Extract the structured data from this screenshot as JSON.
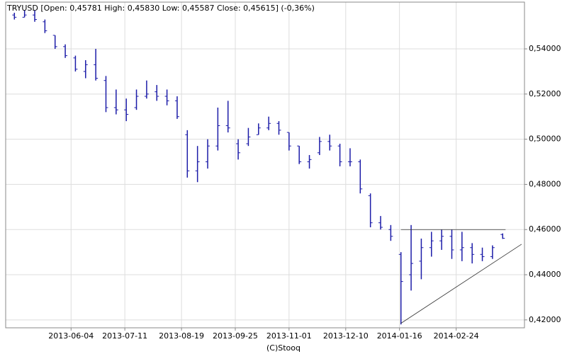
{
  "chart_data": {
    "type": "ohlc",
    "title": "TRYUSD [Open: 0,45781  High: 0,45830  Low: 0,45587  Close: 0,45615] (-0,36%)",
    "footer": "(C)Stooq",
    "color": "#1c1ca8",
    "grid": true,
    "x": [
      "2013-04-26",
      "2013-05-03",
      "2013-05-10",
      "2013-05-17",
      "2013-05-24",
      "2013-05-31",
      "2013-06-07",
      "2013-06-14",
      "2013-06-21",
      "2013-06-28",
      "2013-07-05",
      "2013-07-12",
      "2013-07-19",
      "2013-07-26",
      "2013-08-02",
      "2013-08-09",
      "2013-08-16",
      "2013-08-23",
      "2013-08-30",
      "2013-09-06",
      "2013-09-13",
      "2013-09-20",
      "2013-09-27",
      "2013-10-04",
      "2013-10-11",
      "2013-10-18",
      "2013-10-25",
      "2013-11-01",
      "2013-11-08",
      "2013-11-15",
      "2013-11-22",
      "2013-11-29",
      "2013-12-06",
      "2013-12-13",
      "2013-12-20",
      "2013-12-27",
      "2014-01-03",
      "2014-01-10",
      "2014-01-17",
      "2014-01-24",
      "2014-01-31",
      "2014-02-07",
      "2014-02-14",
      "2014-02-21",
      "2014-02-28",
      "2014-03-07",
      "2014-03-14",
      "2014-03-21",
      "2014-03-28"
    ],
    "open": [
      0.555,
      0.554,
      0.555,
      0.552,
      0.546,
      0.541,
      0.536,
      0.53,
      0.533,
      0.526,
      0.514,
      0.513,
      0.514,
      0.519,
      0.521,
      0.519,
      0.517,
      0.502,
      0.486,
      0.49,
      0.497,
      0.506,
      0.498,
      0.498,
      0.502,
      0.505,
      0.507,
      0.503,
      0.497,
      0.49,
      0.494,
      0.499,
      0.497,
      0.49,
      0.49,
      0.475,
      0.463,
      0.46,
      0.449,
      0.44,
      0.446,
      0.452,
      0.455,
      0.457,
      0.451,
      0.452,
      0.449,
      0.448,
      0.45781
    ],
    "high": [
      0.556,
      0.557,
      0.557,
      0.553,
      0.546,
      0.542,
      0.537,
      0.535,
      0.54,
      0.528,
      0.522,
      0.518,
      0.522,
      0.526,
      0.524,
      0.522,
      0.519,
      0.504,
      0.497,
      0.5,
      0.514,
      0.517,
      0.5,
      0.505,
      0.507,
      0.51,
      0.508,
      0.503,
      0.497,
      0.493,
      0.501,
      0.502,
      0.498,
      0.496,
      0.491,
      0.476,
      0.466,
      0.462,
      0.45,
      0.462,
      0.456,
      0.459,
      0.46,
      0.46,
      0.459,
      0.454,
      0.452,
      0.453,
      0.4583
    ],
    "low": [
      0.553,
      0.554,
      0.552,
      0.547,
      0.54,
      0.536,
      0.53,
      0.527,
      0.526,
      0.512,
      0.511,
      0.508,
      0.513,
      0.518,
      0.517,
      0.515,
      0.509,
      0.483,
      0.481,
      0.487,
      0.495,
      0.503,
      0.491,
      0.497,
      0.502,
      0.504,
      0.502,
      0.495,
      0.489,
      0.487,
      0.493,
      0.495,
      0.488,
      0.488,
      0.476,
      0.461,
      0.46,
      0.455,
      0.418,
      0.433,
      0.438,
      0.448,
      0.451,
      0.447,
      0.446,
      0.445,
      0.446,
      0.447,
      0.45587
    ],
    "close": [
      0.554,
      0.555,
      0.553,
      0.548,
      0.541,
      0.537,
      0.531,
      0.533,
      0.527,
      0.514,
      0.513,
      0.511,
      0.519,
      0.52,
      0.519,
      0.517,
      0.51,
      0.486,
      0.49,
      0.497,
      0.506,
      0.505,
      0.494,
      0.501,
      0.505,
      0.507,
      0.504,
      0.497,
      0.49,
      0.491,
      0.499,
      0.497,
      0.49,
      0.49,
      0.478,
      0.463,
      0.461,
      0.457,
      0.437,
      0.445,
      0.452,
      0.455,
      0.457,
      0.451,
      0.452,
      0.449,
      0.448,
      0.452,
      0.45615
    ],
    "lines": [
      {
        "x": [
          "2014-01-17",
          "2014-03-30"
        ],
        "y": [
          0.46,
          0.46
        ]
      },
      {
        "x": [
          "2014-01-17",
          "2014-04-10"
        ],
        "y": [
          0.4185,
          0.4535
        ]
      }
    ],
    "xlim": [
      "2013-04-20",
      "2014-04-12"
    ],
    "xticks": [
      "2013-06-04",
      "2013-07-11",
      "2013-08-19",
      "2013-09-25",
      "2013-11-01",
      "2013-12-10",
      "2014-01-16",
      "2014-02-24"
    ],
    "ylim": [
      0.4165,
      0.5607
    ],
    "yticks": [
      {
        "value": 0.42,
        "label": "0,42000"
      },
      {
        "value": 0.44,
        "label": "0,44000"
      },
      {
        "value": 0.46,
        "label": "0,46000"
      },
      {
        "value": 0.48,
        "label": "0,48000"
      },
      {
        "value": 0.5,
        "label": "0,50000"
      },
      {
        "value": 0.52,
        "label": "0,52000"
      },
      {
        "value": 0.54,
        "label": "0,54000"
      }
    ]
  }
}
